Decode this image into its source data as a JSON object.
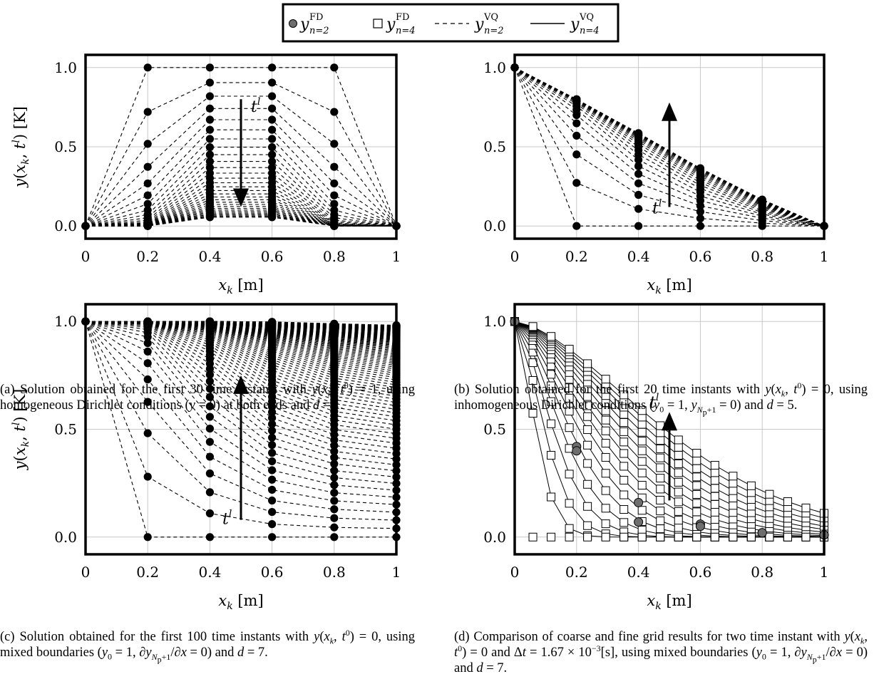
{
  "legend": {
    "entries": [
      {
        "marker": "filled-circle",
        "label": "y",
        "sup": "FD",
        "sub": "n=2"
      },
      {
        "marker": "open-square",
        "label": "y",
        "sup": "FD",
        "sub": "n=4"
      },
      {
        "marker": "dashed-line",
        "label": "y",
        "sup": "VQ",
        "sub": "n=2"
      },
      {
        "marker": "solid-line",
        "label": "y",
        "sup": "VQ",
        "sub": "n=4"
      }
    ]
  },
  "chart_data": [
    {
      "id": "a",
      "type": "line",
      "xlabel": "x_k [m]",
      "ylabel": "y(x_k, t^l) [K]",
      "xlim": [
        0,
        1
      ],
      "ylim": [
        -0.08,
        1.08
      ],
      "xticks": [
        "0",
        "0.2",
        "0.4",
        "0.6",
        "0.8",
        "1"
      ],
      "yticks": [
        "0.0",
        "0.5",
        "1.0"
      ],
      "grid": true,
      "series_style": "dashed-with-filled-circles",
      "n_time_instants": 30,
      "x": [
        0,
        0.2,
        0.4,
        0.6,
        0.8,
        1
      ],
      "annotation": {
        "text": "t",
        "sup": "l",
        "direction": "down"
      },
      "caption": "(a) Solution obtained for the first 30 time instants with y(x_k, t^0) = 1, using homogeneous Dirichlet conditions (y = 0) at both ends and d = 1."
    },
    {
      "id": "b",
      "type": "line",
      "xlabel": "x_k [m]",
      "ylabel": "",
      "xlim": [
        0,
        1
      ],
      "ylim": [
        -0.08,
        1.08
      ],
      "xticks": [
        "0",
        "0.2",
        "0.4",
        "0.6",
        "0.8",
        "1"
      ],
      "yticks": [
        "0.0",
        "0.5",
        "1.0"
      ],
      "grid": true,
      "series_style": "dashed-with-filled-circles",
      "n_time_instants": 20,
      "x": [
        0,
        0.2,
        0.4,
        0.6,
        0.8,
        1
      ],
      "annotation": {
        "text": "t",
        "sup": "l",
        "direction": "up"
      },
      "caption": "(b) Solution obtained for the first 20 time instants with y(x_k, t^0) = 0, using inhomogeneous Dirichlet conditions (y_0 = 1, y_{N_p+1} = 0) and d = 5."
    },
    {
      "id": "c",
      "type": "line",
      "xlabel": "x_k [m]",
      "ylabel": "y(x_k, t^l) [K]",
      "xlim": [
        0,
        1
      ],
      "ylim": [
        -0.08,
        1.08
      ],
      "xticks": [
        "0",
        "0.2",
        "0.4",
        "0.6",
        "0.8",
        "1"
      ],
      "yticks": [
        "0.0",
        "0.5",
        "1.0"
      ],
      "grid": true,
      "series_style": "dashed-with-filled-circles",
      "n_time_instants": 100,
      "x": [
        0,
        0.2,
        0.4,
        0.6,
        0.8,
        1
      ],
      "annotation": {
        "text": "t",
        "sup": "l",
        "direction": "up"
      },
      "caption": "(c) Solution obtained for the first 100 time instants with y(x_k, t^0) = 0, using mixed boundaries (y_0 = 1, ∂y_{N_p+1}/∂x = 0) and d = 7."
    },
    {
      "id": "d",
      "type": "line",
      "xlabel": "x_k [m]",
      "ylabel": "",
      "xlim": [
        0,
        1
      ],
      "ylim": [
        -0.08,
        1.08
      ],
      "xticks": [
        "0",
        "0.2",
        "0.4",
        "0.6",
        "0.8",
        "1"
      ],
      "yticks": [
        "0.0",
        "0.5",
        "1.0"
      ],
      "grid": true,
      "series_style": "solid-with-open-squares-and-gray-circles",
      "n_time_instants": 2,
      "x_coarse": [
        0,
        0.2,
        0.4,
        0.6,
        0.8,
        1
      ],
      "x_fine_count": 17,
      "annotation": {
        "text": "t",
        "sup": "l",
        "direction": "up"
      },
      "caption": "(d) Comparison of coarse and fine grid results for two time instant with y(x_k, t^0) = 0 and Δt = 1.67 × 10^{-3}[s], using mixed boundaries (y_0 = 1, ∂y_{N_p+1}/∂x = 0) and d = 7."
    }
  ],
  "colors": {
    "ink": "#000000",
    "grid": "#c8c8c8",
    "gray_marker": "#6e6e6e"
  }
}
